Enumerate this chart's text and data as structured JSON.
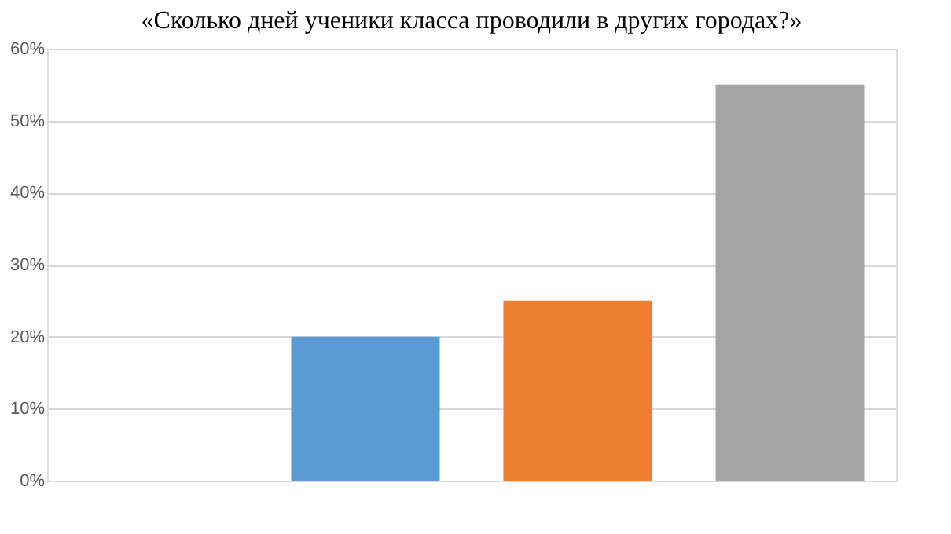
{
  "chart_data": {
    "type": "bar",
    "title": "«Сколько дней ученики класса проводили в других городах?»",
    "categories": [
      null,
      null,
      null,
      null
    ],
    "values": [
      null,
      20,
      25,
      55
    ],
    "colors": [
      "#5b9bd5",
      "#5b9bd5",
      "#ed7d31",
      "#a5a5a5"
    ],
    "ylim": [
      0,
      60
    ],
    "yticks": [
      {
        "value": 0,
        "label": "0%"
      },
      {
        "value": 10,
        "label": "10%"
      },
      {
        "value": 20,
        "label": "20%"
      },
      {
        "value": 30,
        "label": "30%"
      },
      {
        "value": 40,
        "label": "40%"
      },
      {
        "value": 50,
        "label": "50%"
      },
      {
        "value": 60,
        "label": "60%"
      }
    ],
    "grid": "y",
    "tick_labels": "y"
  }
}
